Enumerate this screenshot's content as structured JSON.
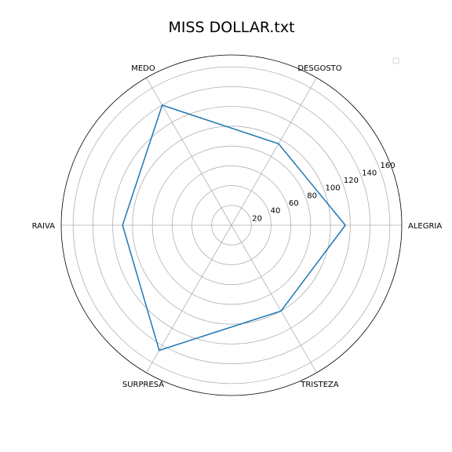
{
  "chart_data": {
    "type": "radar",
    "title": "MISS DOLLAR.txt",
    "categories": [
      "ALEGRIA",
      "DESGOSTO",
      "MEDO",
      "RAIVA",
      "SURPRESA",
      "TRISTEZA"
    ],
    "series": [
      {
        "values": [
          115,
          95,
          140,
          110,
          146,
          100
        ]
      }
    ],
    "rlim": [
      0,
      172
    ],
    "rticks": [
      20,
      40,
      60,
      80,
      100,
      120,
      140,
      160
    ],
    "grid": true,
    "legend": "top-right",
    "colors": {
      "series": "#1f77b4",
      "grid": "#b0b0b0",
      "frame": "#000000"
    }
  }
}
